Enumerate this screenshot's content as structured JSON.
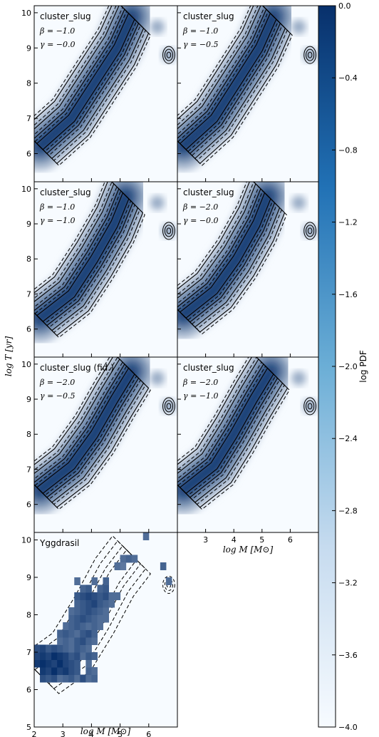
{
  "chart_data": {
    "type": "heatmap",
    "colormap": {
      "low": "#f7fbff",
      "high": "#08306b"
    },
    "colorbar": {
      "label": "log PDF",
      "range": [
        -4.0,
        0.0
      ],
      "ticks": [
        "0.0",
        "−0.4",
        "−0.8",
        "−1.2",
        "−1.6",
        "−2.0",
        "−2.4",
        "−2.8",
        "−3.2",
        "−3.6",
        "−4.0"
      ],
      "tick_values": [
        0.0,
        -0.4,
        -0.8,
        -1.2,
        -1.6,
        -2.0,
        -2.4,
        -2.8,
        -3.2,
        -3.6,
        -4.0
      ]
    },
    "xlabel": "log M [M⊙]",
    "ylabel": "log T [yr]",
    "xlim": [
      2,
      7
    ],
    "ylim": [
      5.2,
      10.2
    ],
    "ylim_bottom_panel": [
      5,
      10.2
    ],
    "xticks": [
      "2",
      "3",
      "4",
      "5",
      "6"
    ],
    "xtick_values": [
      2,
      3,
      4,
      5,
      6
    ],
    "yticks": [
      "6",
      "7",
      "8",
      "9",
      "10"
    ],
    "ytick_values": [
      6,
      7,
      8,
      9,
      10
    ],
    "yticks_bottom_panel": [
      "5",
      "6",
      "7",
      "8",
      "9",
      "10"
    ],
    "ytick_values_bottom_panel": [
      5,
      6,
      7,
      8,
      9,
      10
    ],
    "panels": [
      {
        "title": "cluster_slug",
        "beta": "β = −1.0",
        "gamma": "γ = −0.0",
        "ridge": [
          [
            2.2,
            6.2
          ],
          [
            3.3,
            7.0
          ],
          [
            4.1,
            8.0
          ],
          [
            4.9,
            9.0
          ],
          [
            5.4,
            9.9
          ]
        ]
      },
      {
        "title": "cluster_slug",
        "beta": "β = −1.0",
        "gamma": "γ = −0.5",
        "ridge": [
          [
            2.2,
            6.2
          ],
          [
            3.3,
            7.0
          ],
          [
            4.1,
            8.0
          ],
          [
            4.9,
            9.0
          ],
          [
            5.4,
            9.9
          ]
        ]
      },
      {
        "title": "cluster_slug",
        "beta": "β = −1.0",
        "gamma": "γ = −1.0",
        "ridge": [
          [
            2.2,
            6.3
          ],
          [
            3.3,
            7.0
          ],
          [
            4.1,
            8.0
          ],
          [
            4.8,
            9.0
          ],
          [
            5.2,
            9.8
          ]
        ]
      },
      {
        "title": "cluster_slug",
        "beta": "β = −2.0",
        "gamma": "γ = −0.0",
        "ridge": [
          [
            2.2,
            6.4
          ],
          [
            3.3,
            7.1
          ],
          [
            4.1,
            8.0
          ],
          [
            4.8,
            9.0
          ],
          [
            5.2,
            9.8
          ]
        ]
      },
      {
        "title": "cluster_slug (fid.)",
        "beta": "β = −2.0",
        "gamma": "γ = −0.5",
        "ridge": [
          [
            2.2,
            6.4
          ],
          [
            3.3,
            7.1
          ],
          [
            4.1,
            8.0
          ],
          [
            4.8,
            9.0
          ],
          [
            5.4,
            9.8
          ]
        ]
      },
      {
        "title": "cluster_slug",
        "beta": "β = −2.0",
        "gamma": "γ = −1.0",
        "ridge": [
          [
            2.2,
            6.4
          ],
          [
            3.3,
            7.1
          ],
          [
            4.0,
            8.0
          ],
          [
            4.7,
            9.0
          ],
          [
            5.3,
            9.8
          ]
        ]
      },
      {
        "title": "Yggdrasil",
        "beta": "",
        "gamma": "",
        "ridge": [
          [
            2.2,
            6.4
          ],
          [
            3.3,
            7.0
          ],
          [
            4.1,
            8.0
          ],
          [
            4.8,
            9.0
          ],
          [
            5.4,
            9.6
          ]
        ]
      }
    ],
    "yggdrasil_cells": [
      [
        2.2,
        6.2,
        0.85
      ],
      [
        2.4,
        6.2,
        0.8
      ],
      [
        2.6,
        6.2,
        0.85
      ],
      [
        2.8,
        6.2,
        0.7
      ],
      [
        3.0,
        6.2,
        0.75
      ],
      [
        3.2,
        6.2,
        0.8
      ],
      [
        3.4,
        6.2,
        0.7
      ],
      [
        3.6,
        6.2,
        0.85
      ],
      [
        3.8,
        6.2,
        0.7
      ],
      [
        4.0,
        6.2,
        0.75
      ],
      [
        2.2,
        6.4,
        0.95
      ],
      [
        2.4,
        6.4,
        0.9
      ],
      [
        2.6,
        6.4,
        1.0
      ],
      [
        2.8,
        6.4,
        0.9
      ],
      [
        3.0,
        6.4,
        0.95
      ],
      [
        3.2,
        6.4,
        0.85
      ],
      [
        3.4,
        6.4,
        0.8
      ],
      [
        3.8,
        6.4,
        0.75
      ],
      [
        4.0,
        6.4,
        0.7
      ],
      [
        2.0,
        6.6,
        0.95
      ],
      [
        2.2,
        6.6,
        1.0
      ],
      [
        2.4,
        6.6,
        0.95
      ],
      [
        2.6,
        6.6,
        0.9
      ],
      [
        2.8,
        6.6,
        1.0
      ],
      [
        3.0,
        6.6,
        0.9
      ],
      [
        3.2,
        6.6,
        0.85
      ],
      [
        3.4,
        6.6,
        0.8
      ],
      [
        3.8,
        6.6,
        0.7
      ],
      [
        2.0,
        6.8,
        0.9
      ],
      [
        2.2,
        6.8,
        0.95
      ],
      [
        2.4,
        6.8,
        0.9
      ],
      [
        2.6,
        6.8,
        1.0
      ],
      [
        2.8,
        6.8,
        0.95
      ],
      [
        3.0,
        6.8,
        0.9
      ],
      [
        3.2,
        6.8,
        0.8
      ],
      [
        3.4,
        6.8,
        0.85
      ],
      [
        3.6,
        6.8,
        0.7
      ],
      [
        3.8,
        6.8,
        0.8
      ],
      [
        4.0,
        6.8,
        0.75
      ],
      [
        2.0,
        7.0,
        0.85
      ],
      [
        2.2,
        7.0,
        0.9
      ],
      [
        2.4,
        7.0,
        0.8
      ],
      [
        2.6,
        7.0,
        0.85
      ],
      [
        2.8,
        7.0,
        0.8
      ],
      [
        3.0,
        7.0,
        0.75
      ],
      [
        3.2,
        7.0,
        0.7
      ],
      [
        3.4,
        7.0,
        0.8
      ],
      [
        3.6,
        7.0,
        0.75
      ],
      [
        3.8,
        7.0,
        0.7
      ],
      [
        2.8,
        7.2,
        0.7
      ],
      [
        3.0,
        7.2,
        0.75
      ],
      [
        3.2,
        7.2,
        0.7
      ],
      [
        3.4,
        7.2,
        0.8
      ],
      [
        3.6,
        7.2,
        0.85
      ],
      [
        3.8,
        7.2,
        0.75
      ],
      [
        4.0,
        7.2,
        0.7
      ],
      [
        2.8,
        7.4,
        0.75
      ],
      [
        3.0,
        7.4,
        0.8
      ],
      [
        3.2,
        7.4,
        0.75
      ],
      [
        3.4,
        7.4,
        0.7
      ],
      [
        3.6,
        7.4,
        0.8
      ],
      [
        3.8,
        7.4,
        0.85
      ],
      [
        4.0,
        7.4,
        0.75
      ],
      [
        3.0,
        7.6,
        0.7
      ],
      [
        3.2,
        7.6,
        0.75
      ],
      [
        3.4,
        7.6,
        0.8
      ],
      [
        3.6,
        7.6,
        0.75
      ],
      [
        3.8,
        7.6,
        0.7
      ],
      [
        4.0,
        7.6,
        0.75
      ],
      [
        4.2,
        7.6,
        0.7
      ],
      [
        3.2,
        7.8,
        0.75
      ],
      [
        3.4,
        7.8,
        0.8
      ],
      [
        3.6,
        7.8,
        0.85
      ],
      [
        3.8,
        7.8,
        0.8
      ],
      [
        4.0,
        7.8,
        0.75
      ],
      [
        4.2,
        7.8,
        0.7
      ],
      [
        4.4,
        7.8,
        0.7
      ],
      [
        3.2,
        8.0,
        0.7
      ],
      [
        3.4,
        8.0,
        0.75
      ],
      [
        3.6,
        8.0,
        0.8
      ],
      [
        3.8,
        8.0,
        0.85
      ],
      [
        4.0,
        8.0,
        0.8
      ],
      [
        4.2,
        8.0,
        0.75
      ],
      [
        4.4,
        8.0,
        0.7
      ],
      [
        3.4,
        8.2,
        0.75
      ],
      [
        3.6,
        8.2,
        0.8
      ],
      [
        3.8,
        8.2,
        0.85
      ],
      [
        4.0,
        8.2,
        0.9
      ],
      [
        4.2,
        8.2,
        0.8
      ],
      [
        4.4,
        8.2,
        0.75
      ],
      [
        4.6,
        8.2,
        0.7
      ],
      [
        3.4,
        8.4,
        0.8
      ],
      [
        3.6,
        8.4,
        0.85
      ],
      [
        3.8,
        8.4,
        0.9
      ],
      [
        4.0,
        8.4,
        0.85
      ],
      [
        4.2,
        8.4,
        0.8
      ],
      [
        4.4,
        8.4,
        0.85
      ],
      [
        4.6,
        8.4,
        0.7
      ],
      [
        4.8,
        8.4,
        0.7
      ],
      [
        3.6,
        8.6,
        0.75
      ],
      [
        3.8,
        8.6,
        0.8
      ],
      [
        4.2,
        8.6,
        0.75
      ],
      [
        4.4,
        8.6,
        0.8
      ],
      [
        3.4,
        8.8,
        0.7
      ],
      [
        4.0,
        8.8,
        0.7
      ],
      [
        4.4,
        8.8,
        0.75
      ],
      [
        5.0,
        9.4,
        0.7
      ],
      [
        5.2,
        9.4,
        0.75
      ],
      [
        5.4,
        9.4,
        0.7
      ],
      [
        4.8,
        9.2,
        0.7
      ],
      [
        5.0,
        9.2,
        0.65
      ],
      [
        5.8,
        10.0,
        0.7
      ],
      [
        6.4,
        9.2,
        0.75
      ],
      [
        6.6,
        8.8,
        0.7
      ]
    ]
  }
}
